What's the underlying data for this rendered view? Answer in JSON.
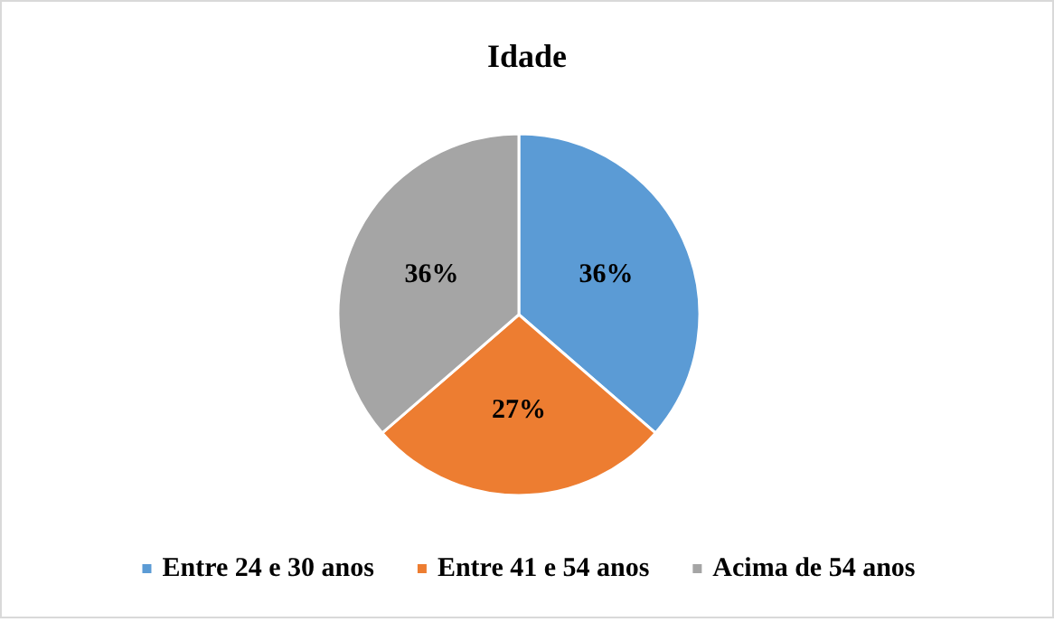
{
  "chart_data": {
    "type": "pie",
    "title": "Idade",
    "categories": [
      "Entre 24 e 30 anos",
      "Entre 41 e 54 anos",
      "Acima de 54 anos"
    ],
    "values": [
      36,
      27,
      36
    ],
    "value_labels": [
      "36%",
      "27%",
      "36%"
    ],
    "colors": [
      "#5b9bd5",
      "#ed7d31",
      "#a5a5a5"
    ],
    "legend": "bottom"
  }
}
